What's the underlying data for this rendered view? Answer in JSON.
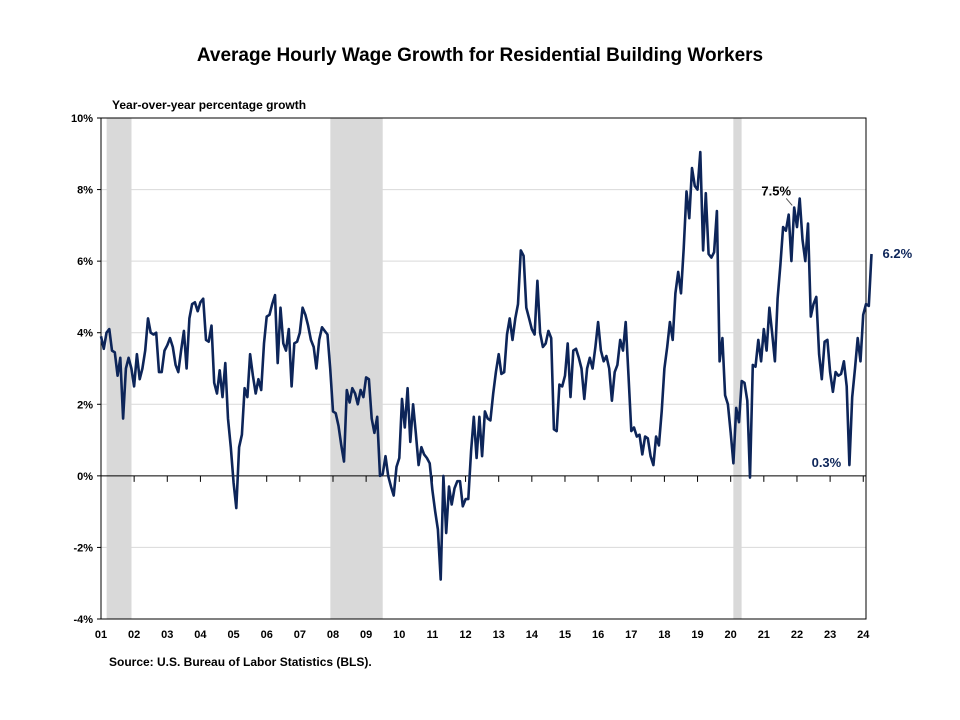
{
  "page": {
    "title": "Average Hourly Wage Growth for Residential Building Workers",
    "source": "Source: U.S. Bureau of Labor Statistics (BLS)."
  },
  "colors": {
    "line": "#0d2559",
    "recession": "#d9d9d9",
    "grid": "#d9d9d9",
    "axis": "#000000",
    "annotation_dark": "#000000",
    "annotation_blue": "#0d2559"
  },
  "chart_data": {
    "type": "line",
    "title": "Average Hourly Wage Growth for Residential Building Workers",
    "ylabel": "Year-over-year percentage growth",
    "xlabel": "",
    "ylim": [
      -4,
      10
    ],
    "yticks": [
      -4,
      -2,
      0,
      2,
      4,
      6,
      8,
      10
    ],
    "ytick_labels": [
      "-4%",
      "-2%",
      "0%",
      "2%",
      "4%",
      "6%",
      "8%",
      "10%"
    ],
    "xlim": [
      2001.0,
      2024.083
    ],
    "xticks": [
      2001,
      2002,
      2003,
      2004,
      2005,
      2006,
      2007,
      2008,
      2009,
      2010,
      2011,
      2012,
      2013,
      2014,
      2015,
      2016,
      2017,
      2018,
      2019,
      2020,
      2021,
      2022,
      2023,
      2024
    ],
    "xtick_labels": [
      "01",
      "02",
      "03",
      "04",
      "05",
      "06",
      "07",
      "08",
      "09",
      "10",
      "11",
      "12",
      "13",
      "14",
      "15",
      "16",
      "17",
      "18",
      "19",
      "20",
      "21",
      "22",
      "23",
      "24"
    ],
    "grid": true,
    "recessions": [
      [
        2001.17,
        2001.92
      ],
      [
        2007.92,
        2009.5
      ],
      [
        2020.08,
        2020.33
      ]
    ],
    "series": [
      {
        "name": "",
        "points": [
          [
            2001.0,
            3.9
          ],
          [
            2001.083,
            3.55
          ],
          [
            2001.167,
            4.0
          ],
          [
            2001.25,
            4.1
          ],
          [
            2001.333,
            3.5
          ],
          [
            2001.417,
            3.45
          ],
          [
            2001.5,
            2.8
          ],
          [
            2001.583,
            3.3
          ],
          [
            2001.667,
            1.6
          ],
          [
            2001.75,
            3.0
          ],
          [
            2001.833,
            3.3
          ],
          [
            2001.917,
            3.0
          ],
          [
            2002.0,
            2.5
          ],
          [
            2002.083,
            3.4
          ],
          [
            2002.167,
            2.7
          ],
          [
            2002.25,
            3.0
          ],
          [
            2002.333,
            3.5
          ],
          [
            2002.417,
            4.4
          ],
          [
            2002.5,
            4.0
          ],
          [
            2002.583,
            3.95
          ],
          [
            2002.667,
            4.0
          ],
          [
            2002.75,
            2.9
          ],
          [
            2002.833,
            2.9
          ],
          [
            2002.917,
            3.5
          ],
          [
            2003.0,
            3.65
          ],
          [
            2003.083,
            3.85
          ],
          [
            2003.167,
            3.6
          ],
          [
            2003.25,
            3.1
          ],
          [
            2003.333,
            2.9
          ],
          [
            2003.417,
            3.5
          ],
          [
            2003.5,
            4.05
          ],
          [
            2003.583,
            3.0
          ],
          [
            2003.667,
            4.4
          ],
          [
            2003.75,
            4.8
          ],
          [
            2003.833,
            4.85
          ],
          [
            2003.917,
            4.6
          ],
          [
            2004.0,
            4.85
          ],
          [
            2004.083,
            4.95
          ],
          [
            2004.167,
            3.8
          ],
          [
            2004.25,
            3.75
          ],
          [
            2004.333,
            4.2
          ],
          [
            2004.417,
            2.6
          ],
          [
            2004.5,
            2.3
          ],
          [
            2004.583,
            2.95
          ],
          [
            2004.667,
            2.2
          ],
          [
            2004.75,
            3.15
          ],
          [
            2004.833,
            1.6
          ],
          [
            2004.917,
            0.8
          ],
          [
            2005.0,
            -0.2
          ],
          [
            2005.083,
            -0.9
          ],
          [
            2005.167,
            0.8
          ],
          [
            2005.25,
            1.15
          ],
          [
            2005.333,
            2.45
          ],
          [
            2005.417,
            2.2
          ],
          [
            2005.5,
            3.4
          ],
          [
            2005.583,
            2.8
          ],
          [
            2005.667,
            2.3
          ],
          [
            2005.75,
            2.7
          ],
          [
            2005.833,
            2.4
          ],
          [
            2005.917,
            3.7
          ],
          [
            2006.0,
            4.45
          ],
          [
            2006.083,
            4.5
          ],
          [
            2006.167,
            4.8
          ],
          [
            2006.25,
            5.05
          ],
          [
            2006.333,
            3.15
          ],
          [
            2006.417,
            4.7
          ],
          [
            2006.5,
            3.7
          ],
          [
            2006.583,
            3.5
          ],
          [
            2006.667,
            4.1
          ],
          [
            2006.75,
            2.5
          ],
          [
            2006.833,
            3.7
          ],
          [
            2006.917,
            3.75
          ],
          [
            2007.0,
            4.0
          ],
          [
            2007.083,
            4.7
          ],
          [
            2007.167,
            4.5
          ],
          [
            2007.25,
            4.2
          ],
          [
            2007.333,
            3.8
          ],
          [
            2007.417,
            3.6
          ],
          [
            2007.5,
            3.0
          ],
          [
            2007.583,
            3.8
          ],
          [
            2007.667,
            4.15
          ],
          [
            2007.75,
            4.05
          ],
          [
            2007.833,
            3.95
          ],
          [
            2007.917,
            3.0
          ],
          [
            2008.0,
            1.8
          ],
          [
            2008.083,
            1.75
          ],
          [
            2008.167,
            1.4
          ],
          [
            2008.25,
            0.85
          ],
          [
            2008.333,
            0.4
          ],
          [
            2008.417,
            2.4
          ],
          [
            2008.5,
            2.05
          ],
          [
            2008.583,
            2.45
          ],
          [
            2008.667,
            2.3
          ],
          [
            2008.75,
            2.0
          ],
          [
            2008.833,
            2.4
          ],
          [
            2008.917,
            2.2
          ],
          [
            2009.0,
            2.75
          ],
          [
            2009.083,
            2.7
          ],
          [
            2009.167,
            1.6
          ],
          [
            2009.25,
            1.2
          ],
          [
            2009.333,
            1.65
          ],
          [
            2009.417,
            0.0
          ],
          [
            2009.5,
            0.05
          ],
          [
            2009.583,
            0.55
          ],
          [
            2009.667,
            0.0
          ],
          [
            2009.75,
            -0.3
          ],
          [
            2009.833,
            -0.55
          ],
          [
            2009.917,
            0.25
          ],
          [
            2010.0,
            0.5
          ],
          [
            2010.083,
            2.15
          ],
          [
            2010.167,
            1.35
          ],
          [
            2010.25,
            2.45
          ],
          [
            2010.333,
            0.95
          ],
          [
            2010.417,
            2.0
          ],
          [
            2010.5,
            1.2
          ],
          [
            2010.583,
            0.3
          ],
          [
            2010.667,
            0.8
          ],
          [
            2010.75,
            0.6
          ],
          [
            2010.833,
            0.5
          ],
          [
            2010.917,
            0.35
          ],
          [
            2011.0,
            -0.4
          ],
          [
            2011.083,
            -1.0
          ],
          [
            2011.167,
            -1.5
          ],
          [
            2011.25,
            -2.9
          ],
          [
            2011.333,
            0.0
          ],
          [
            2011.417,
            -1.6
          ],
          [
            2011.5,
            -0.3
          ],
          [
            2011.583,
            -0.8
          ],
          [
            2011.667,
            -0.35
          ],
          [
            2011.75,
            -0.15
          ],
          [
            2011.833,
            -0.15
          ],
          [
            2011.917,
            -0.85
          ],
          [
            2012.0,
            -0.65
          ],
          [
            2012.083,
            -0.65
          ],
          [
            2012.167,
            0.7
          ],
          [
            2012.25,
            1.65
          ],
          [
            2012.333,
            0.5
          ],
          [
            2012.417,
            1.65
          ],
          [
            2012.5,
            0.55
          ],
          [
            2012.583,
            1.8
          ],
          [
            2012.667,
            1.6
          ],
          [
            2012.75,
            1.55
          ],
          [
            2012.833,
            2.3
          ],
          [
            2012.917,
            2.9
          ],
          [
            2013.0,
            3.4
          ],
          [
            2013.083,
            2.85
          ],
          [
            2013.167,
            2.9
          ],
          [
            2013.25,
            3.95
          ],
          [
            2013.333,
            4.4
          ],
          [
            2013.417,
            3.8
          ],
          [
            2013.5,
            4.4
          ],
          [
            2013.583,
            4.8
          ],
          [
            2013.667,
            6.3
          ],
          [
            2013.75,
            6.15
          ],
          [
            2013.833,
            4.7
          ],
          [
            2013.917,
            4.4
          ],
          [
            2014.0,
            4.1
          ],
          [
            2014.083,
            3.95
          ],
          [
            2014.167,
            5.45
          ],
          [
            2014.25,
            4.0
          ],
          [
            2014.333,
            3.6
          ],
          [
            2014.417,
            3.7
          ],
          [
            2014.5,
            4.05
          ],
          [
            2014.583,
            3.85
          ],
          [
            2014.667,
            1.3
          ],
          [
            2014.75,
            1.25
          ],
          [
            2014.833,
            2.55
          ],
          [
            2014.917,
            2.5
          ],
          [
            2015.0,
            2.8
          ],
          [
            2015.083,
            3.7
          ],
          [
            2015.167,
            2.2
          ],
          [
            2015.25,
            3.5
          ],
          [
            2015.333,
            3.55
          ],
          [
            2015.417,
            3.3
          ],
          [
            2015.5,
            3.0
          ],
          [
            2015.583,
            2.15
          ],
          [
            2015.667,
            3.0
          ],
          [
            2015.75,
            3.3
          ],
          [
            2015.833,
            3.0
          ],
          [
            2015.917,
            3.6
          ],
          [
            2016.0,
            4.3
          ],
          [
            2016.083,
            3.5
          ],
          [
            2016.167,
            3.2
          ],
          [
            2016.25,
            3.35
          ],
          [
            2016.333,
            3.0
          ],
          [
            2016.417,
            2.1
          ],
          [
            2016.5,
            2.9
          ],
          [
            2016.583,
            3.1
          ],
          [
            2016.667,
            3.8
          ],
          [
            2016.75,
            3.5
          ],
          [
            2016.833,
            4.3
          ],
          [
            2016.917,
            2.8
          ],
          [
            2017.0,
            1.25
          ],
          [
            2017.083,
            1.35
          ],
          [
            2017.167,
            1.1
          ],
          [
            2017.25,
            1.15
          ],
          [
            2017.333,
            0.6
          ],
          [
            2017.417,
            1.1
          ],
          [
            2017.5,
            1.05
          ],
          [
            2017.583,
            0.55
          ],
          [
            2017.667,
            0.3
          ],
          [
            2017.75,
            1.1
          ],
          [
            2017.833,
            0.85
          ],
          [
            2017.917,
            1.8
          ],
          [
            2018.0,
            3.0
          ],
          [
            2018.083,
            3.6
          ],
          [
            2018.167,
            4.3
          ],
          [
            2018.25,
            3.8
          ],
          [
            2018.333,
            5.1
          ],
          [
            2018.417,
            5.7
          ],
          [
            2018.5,
            5.1
          ],
          [
            2018.583,
            6.35
          ],
          [
            2018.667,
            7.95
          ],
          [
            2018.75,
            7.2
          ],
          [
            2018.833,
            8.6
          ],
          [
            2018.917,
            8.1
          ],
          [
            2019.0,
            8.0
          ],
          [
            2019.083,
            9.05
          ],
          [
            2019.167,
            6.3
          ],
          [
            2019.25,
            7.9
          ],
          [
            2019.333,
            6.2
          ],
          [
            2019.417,
            6.1
          ],
          [
            2019.5,
            6.25
          ],
          [
            2019.583,
            7.4
          ],
          [
            2019.667,
            3.2
          ],
          [
            2019.75,
            3.85
          ],
          [
            2019.833,
            2.25
          ],
          [
            2019.917,
            2.0
          ],
          [
            2020.0,
            1.2
          ],
          [
            2020.083,
            0.35
          ],
          [
            2020.167,
            1.9
          ],
          [
            2020.25,
            1.5
          ],
          [
            2020.333,
            2.65
          ],
          [
            2020.417,
            2.6
          ],
          [
            2020.5,
            2.1
          ],
          [
            2020.583,
            -0.05
          ],
          [
            2020.667,
            3.1
          ],
          [
            2020.75,
            3.05
          ],
          [
            2020.833,
            3.8
          ],
          [
            2020.917,
            3.2
          ],
          [
            2021.0,
            4.1
          ],
          [
            2021.083,
            3.5
          ],
          [
            2021.167,
            4.7
          ],
          [
            2021.25,
            4.0
          ],
          [
            2021.333,
            3.2
          ],
          [
            2021.417,
            4.95
          ],
          [
            2021.5,
            5.9
          ],
          [
            2021.583,
            6.95
          ],
          [
            2021.667,
            6.85
          ],
          [
            2021.75,
            7.3
          ],
          [
            2021.833,
            6.0
          ],
          [
            2021.917,
            7.5
          ],
          [
            2022.0,
            6.95
          ],
          [
            2022.083,
            7.75
          ],
          [
            2022.167,
            6.6
          ],
          [
            2022.25,
            6.0
          ],
          [
            2022.333,
            7.05
          ],
          [
            2022.417,
            4.45
          ],
          [
            2022.5,
            4.8
          ],
          [
            2022.583,
            5.0
          ],
          [
            2022.667,
            3.4
          ],
          [
            2022.75,
            2.7
          ],
          [
            2022.833,
            3.75
          ],
          [
            2022.917,
            3.8
          ],
          [
            2023.0,
            2.9
          ],
          [
            2023.083,
            2.35
          ],
          [
            2023.167,
            2.9
          ],
          [
            2023.25,
            2.8
          ],
          [
            2023.333,
            2.85
          ],
          [
            2023.417,
            3.2
          ],
          [
            2023.5,
            2.5
          ],
          [
            2023.583,
            0.3
          ],
          [
            2023.667,
            2.2
          ],
          [
            2023.75,
            3.0
          ],
          [
            2023.833,
            3.85
          ],
          [
            2023.917,
            3.2
          ],
          [
            2024.0,
            4.5
          ],
          [
            2024.083,
            4.8
          ],
          [
            2024.167,
            4.75
          ],
          [
            2024.25,
            6.2
          ]
        ]
      }
    ],
    "annotations": [
      {
        "text": "7.5%",
        "x": 2021.917,
        "y": 7.5,
        "color": "annotation_dark"
      },
      {
        "text": "0.3%",
        "x": 2023.583,
        "y": 0.3,
        "color": "annotation_blue"
      },
      {
        "text": "6.2%",
        "x": 2024.25,
        "y": 6.2,
        "color": "annotation_blue"
      }
    ]
  }
}
